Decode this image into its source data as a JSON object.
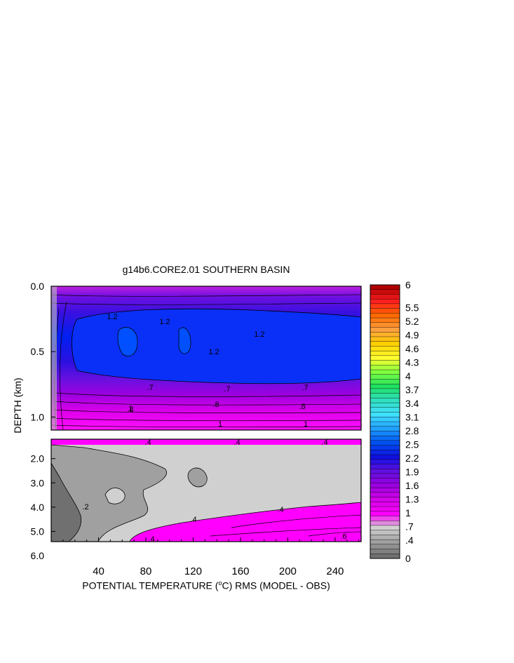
{
  "chart_data": {
    "type": "heatmap",
    "title": "g14b6.CORE2.01 SOUTHERN BASIN",
    "xlabel_prefix": "POTENTIAL TEMPERATURE (",
    "xlabel_unit": "°C",
    "xlabel_suffix": ") RMS (MODEL - OBS)",
    "ylabel": "DEPTH (km)",
    "x_ticks": [
      "40",
      "80",
      "120",
      "160",
      "200",
      "240"
    ],
    "x_tick_values": [
      40,
      80,
      120,
      160,
      200,
      240
    ],
    "xlim": [
      0,
      262
    ],
    "upper_panel": {
      "ylim": [
        0.0,
        1.1
      ],
      "y_ticks": [
        "0.0",
        "0.5",
        "1.0"
      ],
      "y_tick_values": [
        0.0,
        0.5,
        1.0
      ]
    },
    "lower_panel": {
      "ylim": [
        1.2,
        6.0
      ],
      "y_ticks": [
        "2.0",
        "3.0",
        "4.0",
        "5.0",
        "6.0"
      ],
      "y_tick_values": [
        2.0,
        3.0,
        4.0,
        5.0,
        6.0
      ]
    },
    "contour_labels": [
      ".2",
      ".4",
      ".6",
      ".7",
      ".8",
      "1",
      "1.2"
    ],
    "colorbar": {
      "labels": [
        "6",
        "5.5",
        "5.2",
        "4.9",
        "4.6",
        "4.3",
        "4",
        "3.7",
        "3.4",
        "3.1",
        "2.8",
        "2.5",
        "2.2",
        "1.9",
        "1.6",
        "1.3",
        "1",
        ".7",
        ".4",
        "0"
      ],
      "label_values": [
        6,
        5.5,
        5.2,
        4.9,
        4.6,
        4.3,
        4,
        3.7,
        3.4,
        3.1,
        2.8,
        2.5,
        2.2,
        1.9,
        1.6,
        1.3,
        1,
        0.7,
        0.4,
        0
      ],
      "colors_top_to_bottom": [
        "#b00000",
        "#ff2020",
        "#ff6a00",
        "#ffa040",
        "#ffd000",
        "#ffff30",
        "#80ff40",
        "#20e060",
        "#30e0c0",
        "#40e0ff",
        "#20a0ff",
        "#0050f0",
        "#1010e0",
        "#6010e0",
        "#9a00e0",
        "#d400e8",
        "#ff00ff",
        "#d0d0d0",
        "#a0a0a0",
        "#707070"
      ]
    }
  }
}
